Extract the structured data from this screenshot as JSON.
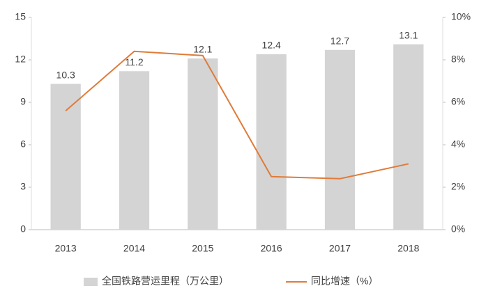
{
  "chart_data": {
    "type": "bar_line",
    "categories": [
      "2013",
      "2014",
      "2015",
      "2016",
      "2017",
      "2018"
    ],
    "series": [
      {
        "name": "全国铁路营运里程（万公里）",
        "color": "#d4d4d4",
        "values": [
          10.3,
          11.2,
          12.1,
          12.4,
          12.7,
          13.1
        ]
      },
      {
        "name": "同比增速（%）",
        "color": "#e07b39",
        "axis": "y2",
        "values": [
          5.6,
          8.4,
          8.2,
          2.5,
          2.4,
          3.1
        ]
      }
    ],
    "ylim": [
      0,
      15
    ],
    "yticks": [
      0,
      3,
      6,
      9,
      12,
      15
    ],
    "y2lim": [
      0,
      10
    ],
    "y2ticks": [
      {
        "value": 0,
        "label": "0%"
      },
      {
        "value": 2,
        "label": "2%"
      },
      {
        "value": 4,
        "label": "4%"
      },
      {
        "value": 6,
        "label": "6%"
      },
      {
        "value": 8,
        "label": "8%"
      },
      {
        "value": 10,
        "label": "10%"
      }
    ],
    "legend": "bottom"
  }
}
